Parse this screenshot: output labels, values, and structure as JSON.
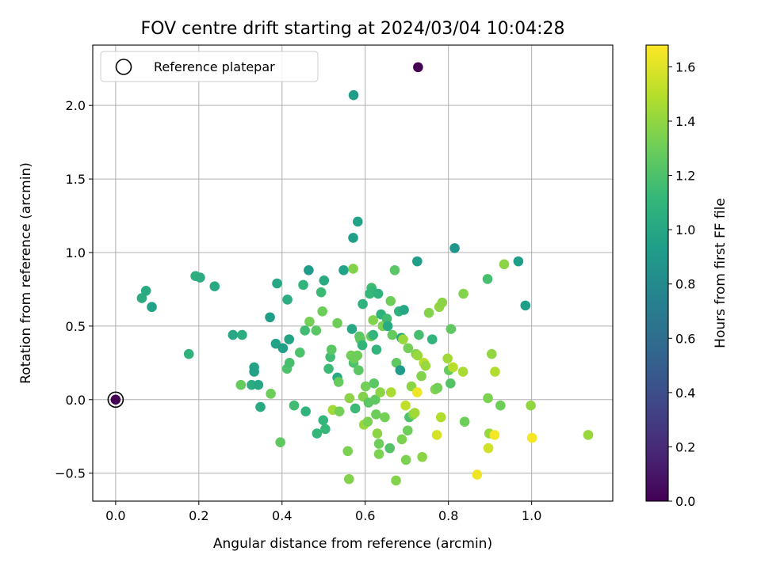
{
  "chart_data": {
    "type": "scatter",
    "title": "FOV centre drift starting at 2024/03/04 10:04:28",
    "xlabel": "Angular distance from reference (arcmin)",
    "ylabel": "Rotation from reference (arcmin)",
    "xlim": [
      -0.055,
      1.195
    ],
    "ylim": [
      -0.69,
      2.41
    ],
    "xticks": [
      0.0,
      0.2,
      0.4,
      0.6,
      0.8,
      1.0
    ],
    "xtick_labels": [
      "0.0",
      "0.2",
      "0.4",
      "0.6",
      "0.8",
      "1.0"
    ],
    "yticks": [
      -0.5,
      0.0,
      0.5,
      1.0,
      1.5,
      2.0
    ],
    "ytick_labels": [
      "−0.5",
      "0.0",
      "0.5",
      "1.0",
      "1.5",
      "2.0"
    ],
    "grid": true,
    "legend": {
      "position": "upper-left",
      "entries": [
        "Reference platepar"
      ]
    },
    "colorbar": {
      "label": "Hours from first FF file",
      "colormap": "viridis",
      "range": [
        0.0,
        1.68
      ],
      "ticks": [
        0.0,
        0.2,
        0.4,
        0.6,
        0.8,
        1.0,
        1.2,
        1.4,
        1.6
      ],
      "tick_labels": [
        "0.0",
        "0.2",
        "0.4",
        "0.6",
        "0.8",
        "1.0",
        "1.2",
        "1.4",
        "1.6"
      ]
    },
    "reference_point": {
      "x": 0.0,
      "y": 0.0
    },
    "points": [
      {
        "x": 0.0,
        "y": 0.0,
        "h": 0.0
      },
      {
        "x": 0.727,
        "y": 2.26,
        "h": 0.0
      },
      {
        "x": 0.572,
        "y": 2.07,
        "h": 0.92
      },
      {
        "x": 0.582,
        "y": 1.21,
        "h": 0.96
      },
      {
        "x": 0.571,
        "y": 1.1,
        "h": 0.94
      },
      {
        "x": 0.815,
        "y": 1.03,
        "h": 0.88
      },
      {
        "x": 0.968,
        "y": 0.94,
        "h": 0.94
      },
      {
        "x": 0.725,
        "y": 0.94,
        "h": 0.94
      },
      {
        "x": 0.985,
        "y": 0.64,
        "h": 0.94
      },
      {
        "x": 0.063,
        "y": 0.69,
        "h": 1.04
      },
      {
        "x": 0.073,
        "y": 0.74,
        "h": 1.02
      },
      {
        "x": 0.087,
        "y": 0.63,
        "h": 0.96
      },
      {
        "x": 0.192,
        "y": 0.84,
        "h": 1.06
      },
      {
        "x": 0.203,
        "y": 0.83,
        "h": 1.04
      },
      {
        "x": 0.238,
        "y": 0.77,
        "h": 1.02
      },
      {
        "x": 0.176,
        "y": 0.31,
        "h": 1.08
      },
      {
        "x": 0.282,
        "y": 0.44,
        "h": 1.0
      },
      {
        "x": 0.304,
        "y": 0.44,
        "h": 1.04
      },
      {
        "x": 0.371,
        "y": 0.56,
        "h": 0.94
      },
      {
        "x": 0.388,
        "y": 0.79,
        "h": 1.0
      },
      {
        "x": 0.413,
        "y": 0.68,
        "h": 1.04
      },
      {
        "x": 0.385,
        "y": 0.38,
        "h": 0.96
      },
      {
        "x": 0.402,
        "y": 0.35,
        "h": 0.94
      },
      {
        "x": 0.417,
        "y": 0.41,
        "h": 0.98
      },
      {
        "x": 0.333,
        "y": 0.22,
        "h": 0.98
      },
      {
        "x": 0.333,
        "y": 0.19,
        "h": 0.96
      },
      {
        "x": 0.327,
        "y": 0.1,
        "h": 1.04
      },
      {
        "x": 0.343,
        "y": 0.1,
        "h": 1.0
      },
      {
        "x": 0.348,
        "y": -0.05,
        "h": 1.02
      },
      {
        "x": 0.301,
        "y": 0.1,
        "h": 1.28
      },
      {
        "x": 0.373,
        "y": 0.04,
        "h": 1.3
      },
      {
        "x": 0.396,
        "y": -0.29,
        "h": 1.26
      },
      {
        "x": 0.412,
        "y": 0.21,
        "h": 1.2
      },
      {
        "x": 0.418,
        "y": 0.25,
        "h": 1.18
      },
      {
        "x": 0.429,
        "y": -0.04,
        "h": 1.16
      },
      {
        "x": 0.443,
        "y": 0.32,
        "h": 1.2
      },
      {
        "x": 0.451,
        "y": 0.78,
        "h": 1.1
      },
      {
        "x": 0.455,
        "y": 0.47,
        "h": 1.16
      },
      {
        "x": 0.457,
        "y": -0.08,
        "h": 1.08
      },
      {
        "x": 0.464,
        "y": 0.88,
        "h": 0.92
      },
      {
        "x": 0.466,
        "y": 0.53,
        "h": 1.32
      },
      {
        "x": 0.482,
        "y": 0.47,
        "h": 1.24
      },
      {
        "x": 0.484,
        "y": -0.23,
        "h": 1.12
      },
      {
        "x": 0.494,
        "y": 0.73,
        "h": 1.14
      },
      {
        "x": 0.497,
        "y": 0.6,
        "h": 1.3
      },
      {
        "x": 0.499,
        "y": -0.14,
        "h": 1.1
      },
      {
        "x": 0.501,
        "y": 0.81,
        "h": 1.02
      },
      {
        "x": 0.504,
        "y": -0.2,
        "h": 1.12
      },
      {
        "x": 0.512,
        "y": 0.21,
        "h": 1.14
      },
      {
        "x": 0.516,
        "y": 0.29,
        "h": 1.16
      },
      {
        "x": 0.519,
        "y": 0.34,
        "h": 1.24
      },
      {
        "x": 0.522,
        "y": -0.07,
        "h": 1.44
      },
      {
        "x": 0.533,
        "y": 0.52,
        "h": 1.3
      },
      {
        "x": 0.533,
        "y": 0.15,
        "h": 1.02
      },
      {
        "x": 0.536,
        "y": 0.12,
        "h": 1.28
      },
      {
        "x": 0.538,
        "y": -0.08,
        "h": 1.32
      },
      {
        "x": 0.548,
        "y": 0.88,
        "h": 0.96
      },
      {
        "x": 0.558,
        "y": -0.35,
        "h": 1.34
      },
      {
        "x": 0.561,
        "y": -0.54,
        "h": 1.36
      },
      {
        "x": 0.562,
        "y": 0.01,
        "h": 1.38
      },
      {
        "x": 0.566,
        "y": 0.3,
        "h": 1.32
      },
      {
        "x": 0.568,
        "y": 0.48,
        "h": 1.0
      },
      {
        "x": 0.571,
        "y": 0.89,
        "h": 1.36
      },
      {
        "x": 0.572,
        "y": 0.25,
        "h": 1.2
      },
      {
        "x": 0.573,
        "y": 0.28,
        "h": 1.3
      },
      {
        "x": 0.576,
        "y": -0.06,
        "h": 1.14
      },
      {
        "x": 0.581,
        "y": 0.3,
        "h": 1.3
      },
      {
        "x": 0.584,
        "y": 0.2,
        "h": 1.24
      },
      {
        "x": 0.586,
        "y": 0.43,
        "h": 1.24
      },
      {
        "x": 0.588,
        "y": 0.41,
        "h": 1.26
      },
      {
        "x": 0.593,
        "y": 0.37,
        "h": 1.1
      },
      {
        "x": 0.594,
        "y": 0.65,
        "h": 1.08
      },
      {
        "x": 0.595,
        "y": 0.02,
        "h": 1.36
      },
      {
        "x": 0.597,
        "y": -0.17,
        "h": 1.42
      },
      {
        "x": 0.601,
        "y": 0.09,
        "h": 1.32
      },
      {
        "x": 0.606,
        "y": -0.15,
        "h": 1.34
      },
      {
        "x": 0.608,
        "y": -0.02,
        "h": 1.24
      },
      {
        "x": 0.611,
        "y": 0.72,
        "h": 1.12
      },
      {
        "x": 0.614,
        "y": 0.43,
        "h": 1.3
      },
      {
        "x": 0.615,
        "y": 0.76,
        "h": 1.16
      },
      {
        "x": 0.617,
        "y": 0.74,
        "h": 1.12
      },
      {
        "x": 0.619,
        "y": 0.54,
        "h": 1.36
      },
      {
        "x": 0.619,
        "y": 0.44,
        "h": 1.1
      },
      {
        "x": 0.621,
        "y": 0.11,
        "h": 1.24
      },
      {
        "x": 0.624,
        "y": 0.0,
        "h": 1.26
      },
      {
        "x": 0.626,
        "y": -0.1,
        "h": 1.3
      },
      {
        "x": 0.627,
        "y": 0.34,
        "h": 1.1
      },
      {
        "x": 0.629,
        "y": -0.23,
        "h": 1.38
      },
      {
        "x": 0.631,
        "y": 0.72,
        "h": 1.08
      },
      {
        "x": 0.633,
        "y": -0.3,
        "h": 1.3
      },
      {
        "x": 0.633,
        "y": -0.37,
        "h": 1.34
      },
      {
        "x": 0.636,
        "y": 0.05,
        "h": 1.38
      },
      {
        "x": 0.638,
        "y": 0.58,
        "h": 1.08
      },
      {
        "x": 0.642,
        "y": 0.5,
        "h": 1.34
      },
      {
        "x": 0.647,
        "y": -0.12,
        "h": 1.32
      },
      {
        "x": 0.652,
        "y": 0.55,
        "h": 1.16
      },
      {
        "x": 0.654,
        "y": 0.5,
        "h": 1.02
      },
      {
        "x": 0.659,
        "y": -0.33,
        "h": 1.22
      },
      {
        "x": 0.661,
        "y": 0.67,
        "h": 1.3
      },
      {
        "x": 0.662,
        "y": 0.05,
        "h": 1.46
      },
      {
        "x": 0.665,
        "y": 0.44,
        "h": 1.28
      },
      {
        "x": 0.671,
        "y": 0.88,
        "h": 1.24
      },
      {
        "x": 0.674,
        "y": -0.55,
        "h": 1.36
      },
      {
        "x": 0.675,
        "y": 0.25,
        "h": 1.26
      },
      {
        "x": 0.681,
        "y": 0.6,
        "h": 1.08
      },
      {
        "x": 0.684,
        "y": 0.2,
        "h": 0.92
      },
      {
        "x": 0.687,
        "y": 0.42,
        "h": 1.02
      },
      {
        "x": 0.688,
        "y": -0.27,
        "h": 1.34
      },
      {
        "x": 0.691,
        "y": 0.41,
        "h": 1.42
      },
      {
        "x": 0.693,
        "y": 0.61,
        "h": 1.0
      },
      {
        "x": 0.697,
        "y": -0.04,
        "h": 1.52
      },
      {
        "x": 0.698,
        "y": -0.41,
        "h": 1.34
      },
      {
        "x": 0.702,
        "y": -0.21,
        "h": 1.3
      },
      {
        "x": 0.703,
        "y": 0.35,
        "h": 1.32
      },
      {
        "x": 0.706,
        "y": -0.12,
        "h": 1.2
      },
      {
        "x": 0.711,
        "y": 0.09,
        "h": 1.38
      },
      {
        "x": 0.715,
        "y": -0.1,
        "h": 1.36
      },
      {
        "x": 0.719,
        "y": -0.09,
        "h": 1.44
      },
      {
        "x": 0.722,
        "y": 0.31,
        "h": 1.36
      },
      {
        "x": 0.725,
        "y": 0.05,
        "h": 1.64
      },
      {
        "x": 0.726,
        "y": 0.3,
        "h": 1.42
      },
      {
        "x": 0.729,
        "y": 0.44,
        "h": 1.18
      },
      {
        "x": 0.735,
        "y": 0.16,
        "h": 1.36
      },
      {
        "x": 0.737,
        "y": -0.39,
        "h": 1.38
      },
      {
        "x": 0.741,
        "y": 0.25,
        "h": 1.5
      },
      {
        "x": 0.745,
        "y": 0.23,
        "h": 1.42
      },
      {
        "x": 0.753,
        "y": 0.59,
        "h": 1.36
      },
      {
        "x": 0.761,
        "y": 0.41,
        "h": 1.1
      },
      {
        "x": 0.768,
        "y": 0.07,
        "h": 1.36
      },
      {
        "x": 0.772,
        "y": -0.24,
        "h": 1.58
      },
      {
        "x": 0.774,
        "y": 0.08,
        "h": 1.32
      },
      {
        "x": 0.778,
        "y": 0.63,
        "h": 1.4
      },
      {
        "x": 0.782,
        "y": -0.12,
        "h": 1.48
      },
      {
        "x": 0.785,
        "y": 0.66,
        "h": 1.38
      },
      {
        "x": 0.798,
        "y": 0.28,
        "h": 1.44
      },
      {
        "x": 0.801,
        "y": 0.2,
        "h": 1.28
      },
      {
        "x": 0.805,
        "y": 0.11,
        "h": 1.22
      },
      {
        "x": 0.806,
        "y": 0.48,
        "h": 1.26
      },
      {
        "x": 0.811,
        "y": 0.22,
        "h": 1.5
      },
      {
        "x": 0.835,
        "y": 0.19,
        "h": 1.46
      },
      {
        "x": 0.836,
        "y": 0.72,
        "h": 1.36
      },
      {
        "x": 0.839,
        "y": -0.15,
        "h": 1.3
      },
      {
        "x": 0.869,
        "y": -0.51,
        "h": 1.64
      },
      {
        "x": 0.894,
        "y": 0.82,
        "h": 1.18
      },
      {
        "x": 0.895,
        "y": 0.01,
        "h": 1.34
      },
      {
        "x": 0.896,
        "y": -0.33,
        "h": 1.56
      },
      {
        "x": 0.898,
        "y": -0.23,
        "h": 1.42
      },
      {
        "x": 0.904,
        "y": 0.31,
        "h": 1.4
      },
      {
        "x": 0.911,
        "y": -0.24,
        "h": 1.66
      },
      {
        "x": 0.912,
        "y": 0.19,
        "h": 1.48
      },
      {
        "x": 0.925,
        "y": -0.04,
        "h": 1.3
      },
      {
        "x": 0.934,
        "y": 0.92,
        "h": 1.38
      },
      {
        "x": 0.998,
        "y": -0.04,
        "h": 1.4
      },
      {
        "x": 1.001,
        "y": -0.26,
        "h": 1.66
      },
      {
        "x": 1.136,
        "y": -0.24,
        "h": 1.42
      }
    ]
  }
}
